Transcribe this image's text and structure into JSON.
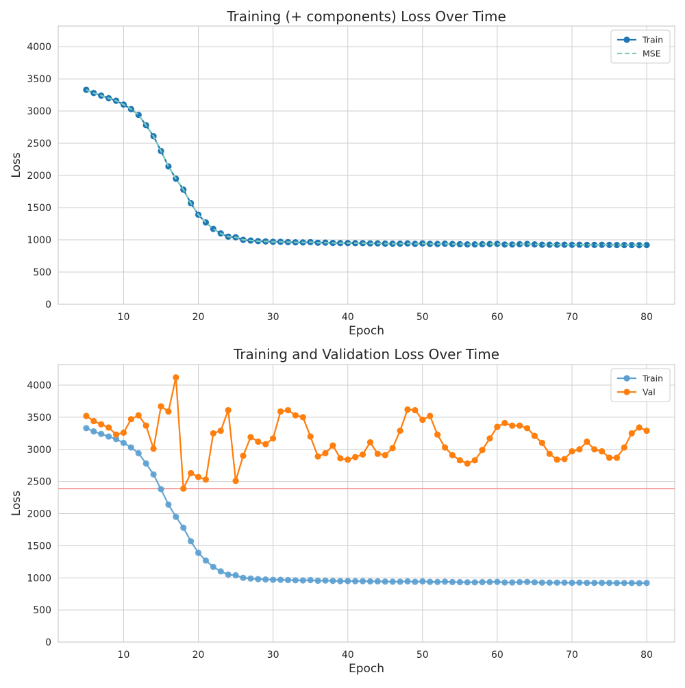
{
  "chart_data": [
    {
      "type": "line",
      "title": "Training (+ components) Loss Over Time",
      "xlabel": "Epoch",
      "ylabel": "Loss",
      "xlim": [
        1.25,
        83.75
      ],
      "ylim": [
        0,
        4320
      ],
      "xticks": [
        10,
        20,
        30,
        40,
        50,
        60,
        70,
        80
      ],
      "yticks": [
        0,
        500,
        1000,
        1500,
        2000,
        2500,
        3000,
        3500,
        4000
      ],
      "grid": true,
      "legend": "top-right",
      "x": [
        5,
        6,
        7,
        8,
        9,
        10,
        11,
        12,
        13,
        14,
        15,
        16,
        17,
        18,
        19,
        20,
        21,
        22,
        23,
        24,
        25,
        26,
        27,
        28,
        29,
        30,
        31,
        32,
        33,
        34,
        35,
        36,
        37,
        38,
        39,
        40,
        41,
        42,
        43,
        44,
        45,
        46,
        47,
        48,
        49,
        50,
        51,
        52,
        53,
        54,
        55,
        56,
        57,
        58,
        59,
        60,
        61,
        62,
        63,
        64,
        65,
        66,
        67,
        68,
        69,
        70,
        71,
        72,
        73,
        74,
        75,
        76,
        77,
        78,
        79,
        80
      ],
      "series": [
        {
          "name": "Train",
          "color": "#1f77b4",
          "style": "solid-marker",
          "values": [
            3330,
            3280,
            3240,
            3200,
            3160,
            3100,
            3030,
            2940,
            2780,
            2610,
            2380,
            2140,
            1950,
            1780,
            1570,
            1390,
            1270,
            1170,
            1100,
            1050,
            1040,
            1000,
            990,
            980,
            975,
            970,
            970,
            965,
            962,
            960,
            965,
            955,
            958,
            952,
            950,
            950,
            948,
            948,
            945,
            945,
            942,
            940,
            940,
            945,
            938,
            945,
            938,
            936,
            940,
            935,
            933,
            930,
            930,
            933,
            935,
            938,
            928,
            928,
            933,
            936,
            930,
            925,
            925,
            925,
            925,
            923,
            925,
            922,
            922,
            923,
            922,
            920,
            920,
            920,
            918,
            920
          ]
        },
        {
          "name": "MSE",
          "color": "#7fcdbb",
          "style": "dashed",
          "values": [
            3330,
            3280,
            3240,
            3200,
            3160,
            3100,
            3030,
            2940,
            2780,
            2610,
            2380,
            2140,
            1950,
            1780,
            1570,
            1390,
            1270,
            1170,
            1100,
            1050,
            1040,
            1000,
            990,
            980,
            975,
            970,
            970,
            965,
            962,
            960,
            965,
            955,
            958,
            952,
            950,
            950,
            948,
            948,
            945,
            945,
            942,
            940,
            940,
            945,
            938,
            945,
            938,
            936,
            940,
            935,
            933,
            930,
            930,
            933,
            935,
            938,
            928,
            928,
            933,
            936,
            930,
            925,
            925,
            925,
            925,
            923,
            925,
            922,
            922,
            923,
            922,
            920,
            920,
            920,
            918,
            920
          ]
        }
      ]
    },
    {
      "type": "line",
      "title": "Training and Validation Loss Over Time",
      "xlabel": "Epoch",
      "ylabel": "Loss",
      "xlim": [
        1.25,
        83.75
      ],
      "ylim": [
        0,
        4320
      ],
      "xticks": [
        10,
        20,
        30,
        40,
        50,
        60,
        70,
        80
      ],
      "yticks": [
        0,
        500,
        1000,
        1500,
        2000,
        2500,
        3000,
        3500,
        4000
      ],
      "grid": true,
      "legend": "top-right",
      "hline": {
        "y": 2390,
        "color": "#f4a6a6"
      },
      "x": [
        5,
        6,
        7,
        8,
        9,
        10,
        11,
        12,
        13,
        14,
        15,
        16,
        17,
        18,
        19,
        20,
        21,
        22,
        23,
        24,
        25,
        26,
        27,
        28,
        29,
        30,
        31,
        32,
        33,
        34,
        35,
        36,
        37,
        38,
        39,
        40,
        41,
        42,
        43,
        44,
        45,
        46,
        47,
        48,
        49,
        50,
        51,
        52,
        53,
        54,
        55,
        56,
        57,
        58,
        59,
        60,
        61,
        62,
        63,
        64,
        65,
        66,
        67,
        68,
        69,
        70,
        71,
        72,
        73,
        74,
        75,
        76,
        77,
        78,
        79,
        80
      ],
      "series": [
        {
          "name": "Train",
          "color": "#5a9fd0",
          "style": "solid-marker",
          "values": [
            3330,
            3280,
            3240,
            3200,
            3160,
            3100,
            3030,
            2940,
            2780,
            2610,
            2380,
            2140,
            1950,
            1780,
            1570,
            1390,
            1270,
            1170,
            1100,
            1050,
            1040,
            1000,
            990,
            980,
            975,
            970,
            970,
            965,
            962,
            960,
            965,
            955,
            958,
            952,
            950,
            950,
            948,
            948,
            945,
            945,
            942,
            940,
            940,
            945,
            938,
            945,
            938,
            936,
            940,
            935,
            933,
            930,
            930,
            933,
            935,
            938,
            928,
            928,
            933,
            936,
            930,
            925,
            925,
            925,
            925,
            923,
            925,
            922,
            922,
            923,
            922,
            920,
            920,
            920,
            918,
            920
          ]
        },
        {
          "name": "Val",
          "color": "#ff7f0e",
          "style": "solid-marker",
          "values": [
            3520,
            3440,
            3390,
            3340,
            3230,
            3260,
            3470,
            3530,
            3370,
            3010,
            3670,
            3590,
            4120,
            2390,
            2630,
            2570,
            2530,
            3250,
            3290,
            3610,
            2510,
            2900,
            3190,
            3120,
            3080,
            3170,
            3590,
            3610,
            3530,
            3500,
            3200,
            2890,
            2940,
            3060,
            2860,
            2840,
            2880,
            2920,
            3110,
            2930,
            2910,
            3020,
            3290,
            3620,
            3610,
            3460,
            3520,
            3230,
            3030,
            2910,
            2830,
            2780,
            2830,
            2990,
            3170,
            3350,
            3410,
            3370,
            3370,
            3330,
            3210,
            3100,
            2930,
            2840,
            2850,
            2970,
            3000,
            3120,
            3000,
            2970,
            2870,
            2870,
            3030,
            3250,
            3340,
            3290
          ]
        }
      ]
    }
  ]
}
